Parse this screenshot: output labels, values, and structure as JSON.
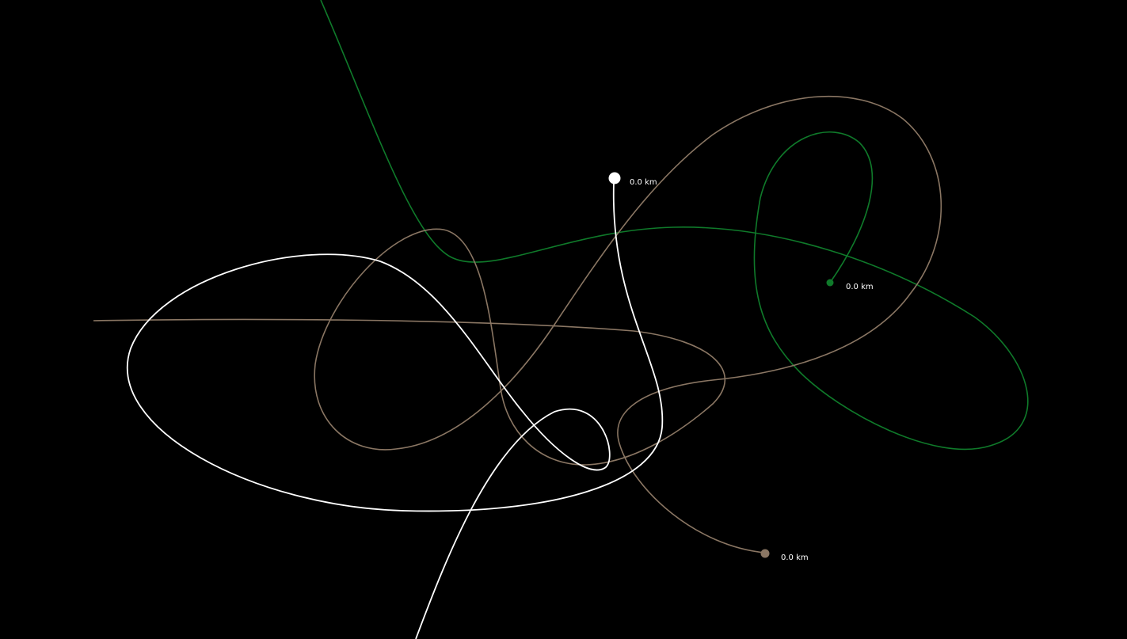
{
  "scene": {
    "background_color": "#000000"
  },
  "bodies": [
    {
      "name": "white-body",
      "color": "#ffffff",
      "distance_label": "0.0 km"
    },
    {
      "name": "green-body",
      "color": "#0f7a2a",
      "distance_label": "0.0 km"
    },
    {
      "name": "brown-body",
      "color": "#8a7663",
      "distance_label": "0.0 km"
    }
  ]
}
